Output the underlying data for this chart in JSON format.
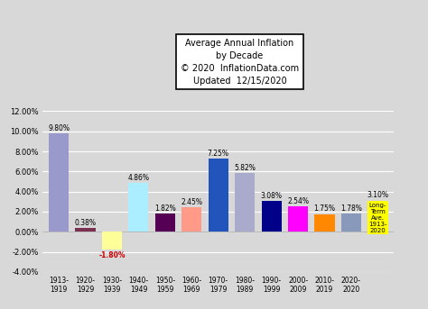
{
  "categories": [
    "1913-\n1919",
    "1920-\n1929",
    "1930-\n1939",
    "1940-\n1949",
    "1950-\n1959",
    "1960-\n1969",
    "1970-\n1979",
    "1980-\n1989",
    "1990-\n1999",
    "2000-\n2009",
    "2010-\n2019",
    "2020-\n2020"
  ],
  "values": [
    9.8,
    0.38,
    -1.8,
    4.86,
    1.82,
    2.45,
    7.25,
    5.82,
    3.08,
    2.54,
    1.75,
    1.78
  ],
  "long_term_avg": 3.1,
  "bar_colors": [
    "#9999cc",
    "#7a3050",
    "#ffff99",
    "#aaeeff",
    "#550055",
    "#ff9988",
    "#2255bb",
    "#aaaacc",
    "#000088",
    "#ff00ff",
    "#ff8800",
    "#8899bb"
  ],
  "neg_label_color": "#cc0000",
  "labels": [
    "9.80%",
    "0.38%",
    "-1.80%",
    "4.86%",
    "1.82%",
    "2.45%",
    "7.25%",
    "5.82%",
    "3.08%",
    "2.54%",
    "1.75%",
    "1.78%"
  ],
  "long_term_label": "3.10%",
  "long_term_box_color": "#ffff00",
  "long_term_text": "Long-\nTerm\nAve.\n1913-\n2020",
  "title_line1": "Average Annual Inflation",
  "title_line2": "by Decade",
  "subtitle1": "© 2020  InflationData.com",
  "subtitle2": "Updated  12/15/2020",
  "ylim": [
    -4.0,
    12.0
  ],
  "yticks": [
    -4.0,
    -2.0,
    0.0,
    2.0,
    4.0,
    6.0,
    8.0,
    10.0,
    12.0
  ],
  "background_color": "#d8d8d8",
  "plot_bg_color": "#d8d8d8",
  "grid_color": "#ffffff"
}
